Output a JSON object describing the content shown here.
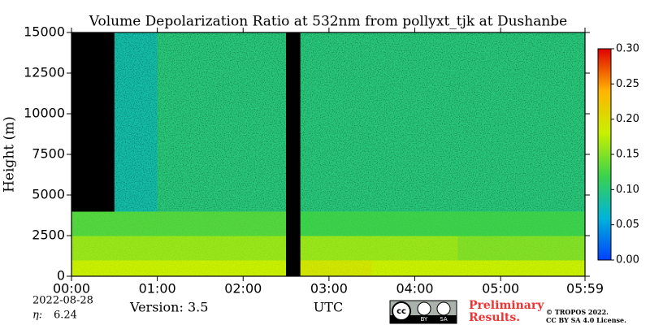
{
  "chart_data": {
    "type": "heatmap",
    "title": "Volume Depolarization Ratio at 532nm from pollyxt_tjk at Dushanbe",
    "ylabel": "Height (m)",
    "xlabel": "UTC",
    "x_edges": [
      0,
      30,
      60,
      90,
      120,
      150,
      160,
      210,
      270,
      330,
      359
    ],
    "y_edges": [
      0,
      1000,
      2500,
      4000,
      15000
    ],
    "z": [
      [
        0.18,
        0.18,
        0.18,
        0.18,
        0.18,
        null,
        0.19,
        0.18,
        0.18,
        0.18
      ],
      [
        0.16,
        0.16,
        0.16,
        0.16,
        0.16,
        null,
        0.16,
        0.16,
        0.15,
        0.15
      ],
      [
        0.13,
        0.13,
        0.13,
        0.13,
        0.13,
        null,
        0.12,
        0.12,
        0.12,
        0.12
      ],
      [
        null,
        0.08,
        0.1,
        0.1,
        0.1,
        null,
        0.1,
        0.1,
        0.1,
        0.1
      ]
    ],
    "xlim": [
      0,
      359
    ],
    "ylim": [
      0,
      15000
    ],
    "xticks": [
      {
        "value": 0,
        "label": "00:00"
      },
      {
        "value": 60,
        "label": "01:00"
      },
      {
        "value": 120,
        "label": "02:00"
      },
      {
        "value": 180,
        "label": "03:00"
      },
      {
        "value": 240,
        "label": "04:00"
      },
      {
        "value": 300,
        "label": "05:00"
      },
      {
        "value": 359,
        "label": "05:59"
      }
    ],
    "yticks": [
      0,
      2500,
      5000,
      7500,
      10000,
      12500,
      15000
    ],
    "zlim": [
      0,
      0.3
    ],
    "zticks": [
      {
        "value": 0,
        "label": "0.00"
      },
      0.05,
      {
        "value": 0.1,
        "label": "0.10"
      },
      0.15,
      {
        "value": 0.2,
        "label": "0.20"
      },
      0.25,
      {
        "value": 0.3,
        "label": "0.30"
      }
    ],
    "colormap": [
      "#0040ff",
      "#00b4d8",
      "#3cd24b",
      "#c8f000",
      "#ffb400",
      "#e00000"
    ],
    "missing_color": "#000000",
    "annotations": {
      "date": "2022-08-28",
      "eta_label": "η:",
      "eta_value": "6.24",
      "version": "Version: 3.5",
      "preliminary_1": "Preliminary",
      "preliminary_2": "Results.",
      "copyright": "© TROPOS 2022.",
      "license": "CC BY SA 4.0 License.",
      "cc_by": "BY",
      "cc_sa": "SA"
    }
  }
}
